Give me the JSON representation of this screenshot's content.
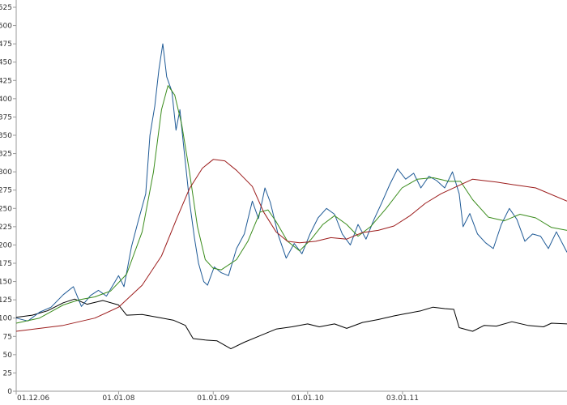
{
  "chart_data": {
    "type": "line",
    "title": "",
    "xlabel": "",
    "ylabel": "",
    "grid": false,
    "ylim": [
      0,
      525
    ],
    "xlim": [
      "2006-12-01",
      "2012-09-30"
    ],
    "y_ticks": [
      0,
      25,
      50,
      75,
      100,
      125,
      150,
      175,
      200,
      225,
      250,
      275,
      300,
      325,
      350,
      375,
      400,
      425,
      450,
      475,
      500,
      525
    ],
    "x_ticks": [
      {
        "date": "2006-12-01",
        "label": "01.12.06"
      },
      {
        "date": "2008-01-01",
        "label": "01.01.08"
      },
      {
        "date": "2009-01-01",
        "label": "01.01.09"
      },
      {
        "date": "2010-01-01",
        "label": "01.01.10"
      },
      {
        "date": "2011-01-03",
        "label": "03.01.11"
      }
    ],
    "series": [
      {
        "color": "#000000",
        "points": [
          [
            "2006-12-01",
            101
          ],
          [
            "2007-02-01",
            104
          ],
          [
            "2007-04-01",
            110
          ],
          [
            "2007-06-01",
            121
          ],
          [
            "2007-07-15",
            126
          ],
          [
            "2007-09-01",
            119
          ],
          [
            "2007-11-01",
            124
          ],
          [
            "2008-01-01",
            118
          ],
          [
            "2008-02-01",
            104
          ],
          [
            "2008-04-01",
            105
          ],
          [
            "2008-06-01",
            101
          ],
          [
            "2008-08-01",
            97
          ],
          [
            "2008-09-15",
            90
          ],
          [
            "2008-10-15",
            72
          ],
          [
            "2008-12-01",
            70
          ],
          [
            "2009-01-15",
            69
          ],
          [
            "2009-03-10",
            58
          ],
          [
            "2009-05-01",
            67
          ],
          [
            "2009-07-01",
            76
          ],
          [
            "2009-09-01",
            85
          ],
          [
            "2009-11-01",
            88
          ],
          [
            "2010-01-01",
            92
          ],
          [
            "2010-02-15",
            88
          ],
          [
            "2010-04-15",
            92
          ],
          [
            "2010-06-01",
            86
          ],
          [
            "2010-08-01",
            94
          ],
          [
            "2010-10-01",
            98
          ],
          [
            "2010-12-01",
            103
          ],
          [
            "2011-01-15",
            106
          ],
          [
            "2011-03-15",
            110
          ],
          [
            "2011-05-01",
            115
          ],
          [
            "2011-06-15",
            113
          ],
          [
            "2011-07-20",
            112
          ],
          [
            "2011-08-10",
            87
          ],
          [
            "2011-10-01",
            82
          ],
          [
            "2011-11-15",
            90
          ],
          [
            "2012-01-01",
            89
          ],
          [
            "2012-03-01",
            95
          ],
          [
            "2012-05-01",
            90
          ],
          [
            "2012-07-01",
            88
          ],
          [
            "2012-08-01",
            93
          ],
          [
            "2012-09-30",
            92
          ]
        ]
      },
      {
        "color": "#1f5a96",
        "points": [
          [
            "2006-12-01",
            100
          ],
          [
            "2007-01-15",
            96
          ],
          [
            "2007-03-01",
            108
          ],
          [
            "2007-04-15",
            115
          ],
          [
            "2007-06-01",
            132
          ],
          [
            "2007-07-10",
            143
          ],
          [
            "2007-08-10",
            116
          ],
          [
            "2007-09-15",
            131
          ],
          [
            "2007-10-15",
            138
          ],
          [
            "2007-11-15",
            130
          ],
          [
            "2008-01-01",
            158
          ],
          [
            "2008-01-22",
            143
          ],
          [
            "2008-02-20",
            198
          ],
          [
            "2008-03-15",
            230
          ],
          [
            "2008-04-15",
            270
          ],
          [
            "2008-05-01",
            350
          ],
          [
            "2008-05-20",
            390
          ],
          [
            "2008-06-05",
            440
          ],
          [
            "2008-06-20",
            475
          ],
          [
            "2008-07-05",
            430
          ],
          [
            "2008-07-25",
            410
          ],
          [
            "2008-08-10",
            357
          ],
          [
            "2008-08-25",
            385
          ],
          [
            "2008-09-10",
            330
          ],
          [
            "2008-10-01",
            260
          ],
          [
            "2008-10-20",
            210
          ],
          [
            "2008-11-05",
            175
          ],
          [
            "2008-11-25",
            150
          ],
          [
            "2008-12-10",
            145
          ],
          [
            "2009-01-05",
            170
          ],
          [
            "2009-02-01",
            162
          ],
          [
            "2009-03-01",
            158
          ],
          [
            "2009-04-01",
            195
          ],
          [
            "2009-05-01",
            215
          ],
          [
            "2009-06-01",
            260
          ],
          [
            "2009-06-25",
            236
          ],
          [
            "2009-07-20",
            278
          ],
          [
            "2009-08-10",
            258
          ],
          [
            "2009-09-10",
            213
          ],
          [
            "2009-10-10",
            182
          ],
          [
            "2009-11-10",
            202
          ],
          [
            "2009-12-10",
            188
          ],
          [
            "2010-01-10",
            215
          ],
          [
            "2010-02-10",
            237
          ],
          [
            "2010-03-15",
            250
          ],
          [
            "2010-04-15",
            242
          ],
          [
            "2010-05-15",
            215
          ],
          [
            "2010-06-15",
            200
          ],
          [
            "2010-07-15",
            228
          ],
          [
            "2010-08-15",
            208
          ],
          [
            "2010-09-15",
            235
          ],
          [
            "2010-10-15",
            258
          ],
          [
            "2010-11-15",
            283
          ],
          [
            "2010-12-15",
            304
          ],
          [
            "2011-01-15",
            290
          ],
          [
            "2011-02-15",
            298
          ],
          [
            "2011-03-15",
            278
          ],
          [
            "2011-04-15",
            294
          ],
          [
            "2011-05-15",
            288
          ],
          [
            "2011-06-15",
            278
          ],
          [
            "2011-07-15",
            300
          ],
          [
            "2011-08-10",
            270
          ],
          [
            "2011-08-25",
            225
          ],
          [
            "2011-09-20",
            243
          ],
          [
            "2011-10-20",
            215
          ],
          [
            "2011-11-20",
            203
          ],
          [
            "2011-12-20",
            195
          ],
          [
            "2012-01-20",
            228
          ],
          [
            "2012-02-20",
            250
          ],
          [
            "2012-03-20",
            235
          ],
          [
            "2012-04-20",
            205
          ],
          [
            "2012-05-20",
            215
          ],
          [
            "2012-06-20",
            212
          ],
          [
            "2012-07-20",
            195
          ],
          [
            "2012-08-20",
            218
          ],
          [
            "2012-09-30",
            190
          ]
        ]
      },
      {
        "color": "#3a8c1c",
        "points": [
          [
            "2006-12-01",
            93
          ],
          [
            "2007-03-01",
            100
          ],
          [
            "2007-06-01",
            118
          ],
          [
            "2007-08-01",
            125
          ],
          [
            "2007-10-01",
            129
          ],
          [
            "2007-12-01",
            137
          ],
          [
            "2008-02-01",
            160
          ],
          [
            "2008-04-01",
            218
          ],
          [
            "2008-05-15",
            300
          ],
          [
            "2008-06-15",
            385
          ],
          [
            "2008-07-10",
            418
          ],
          [
            "2008-08-05",
            405
          ],
          [
            "2008-09-01",
            365
          ],
          [
            "2008-10-01",
            300
          ],
          [
            "2008-11-01",
            225
          ],
          [
            "2008-12-01",
            180
          ],
          [
            "2009-01-01",
            168
          ],
          [
            "2009-02-01",
            166
          ],
          [
            "2009-04-01",
            180
          ],
          [
            "2009-05-15",
            205
          ],
          [
            "2009-07-01",
            245
          ],
          [
            "2009-08-01",
            248
          ],
          [
            "2009-09-01",
            232
          ],
          [
            "2009-10-15",
            205
          ],
          [
            "2009-12-01",
            192
          ],
          [
            "2010-01-15",
            208
          ],
          [
            "2010-03-01",
            228
          ],
          [
            "2010-04-15",
            240
          ],
          [
            "2010-06-01",
            228
          ],
          [
            "2010-07-15",
            212
          ],
          [
            "2010-09-01",
            225
          ],
          [
            "2010-11-01",
            250
          ],
          [
            "2011-01-01",
            278
          ],
          [
            "2011-03-01",
            290
          ],
          [
            "2011-05-01",
            292
          ],
          [
            "2011-07-01",
            287
          ],
          [
            "2011-08-15",
            287
          ],
          [
            "2011-10-01",
            262
          ],
          [
            "2011-12-01",
            238
          ],
          [
            "2012-02-01",
            233
          ],
          [
            "2012-04-01",
            242
          ],
          [
            "2012-06-01",
            237
          ],
          [
            "2012-08-01",
            224
          ],
          [
            "2012-09-30",
            220
          ]
        ]
      },
      {
        "color": "#9c1c1c",
        "points": [
          [
            "2006-12-01",
            82
          ],
          [
            "2007-06-01",
            90
          ],
          [
            "2007-10-01",
            100
          ],
          [
            "2008-01-01",
            115
          ],
          [
            "2008-04-01",
            145
          ],
          [
            "2008-06-15",
            185
          ],
          [
            "2008-08-15",
            238
          ],
          [
            "2008-10-01",
            277
          ],
          [
            "2008-11-20",
            305
          ],
          [
            "2009-01-01",
            317
          ],
          [
            "2009-02-15",
            315
          ],
          [
            "2009-04-01",
            302
          ],
          [
            "2009-06-01",
            280
          ],
          [
            "2009-07-15",
            245
          ],
          [
            "2009-09-01",
            218
          ],
          [
            "2009-10-15",
            205
          ],
          [
            "2009-12-01",
            203
          ],
          [
            "2010-02-01",
            205
          ],
          [
            "2010-04-01",
            210
          ],
          [
            "2010-06-01",
            208
          ],
          [
            "2010-08-01",
            217
          ],
          [
            "2010-10-01",
            220
          ],
          [
            "2010-12-01",
            226
          ],
          [
            "2011-02-01",
            240
          ],
          [
            "2011-04-01",
            257
          ],
          [
            "2011-06-01",
            270
          ],
          [
            "2011-08-01",
            280
          ],
          [
            "2011-10-01",
            290
          ],
          [
            "2011-11-15",
            288
          ],
          [
            "2012-01-01",
            286
          ],
          [
            "2012-03-15",
            282
          ],
          [
            "2012-06-01",
            278
          ],
          [
            "2012-09-30",
            260
          ]
        ]
      }
    ]
  }
}
